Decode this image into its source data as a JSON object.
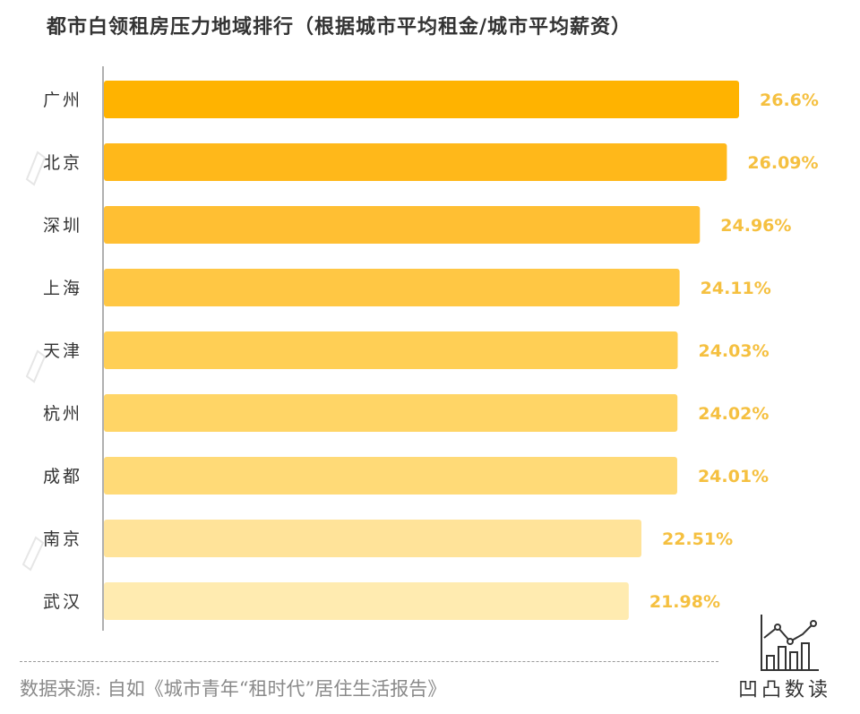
{
  "chart_data": {
    "type": "bar",
    "orientation": "horizontal",
    "title": "都市白领租房压力地域排行（根据城市平均租金/城市平均薪资）",
    "categories": [
      "广州",
      "北京",
      "深圳",
      "上海",
      "天津",
      "杭州",
      "成都",
      "南京",
      "武汉"
    ],
    "values": [
      26.6,
      26.09,
      24.96,
      24.11,
      24.03,
      24.02,
      24.01,
      22.51,
      21.98
    ],
    "value_labels": [
      "26.6%",
      "26.09%",
      "24.96%",
      "24.11%",
      "24.03%",
      "24.02%",
      "24.01%",
      "22.51%",
      "21.98%"
    ],
    "unit": "%",
    "colors": [
      "#FFB300",
      "#FFB81A",
      "#FFBF33",
      "#FFC744",
      "#FFCF55",
      "#FFD566",
      "#FFDA77",
      "#FFE399",
      "#FFEBB0"
    ],
    "label_color": "#F5C040",
    "grid": false,
    "legend": "none"
  },
  "footer": {
    "source": "数据来源: 自如《城市青年“租时代”居住生活报告》",
    "logo_text": "凹凸数读"
  }
}
